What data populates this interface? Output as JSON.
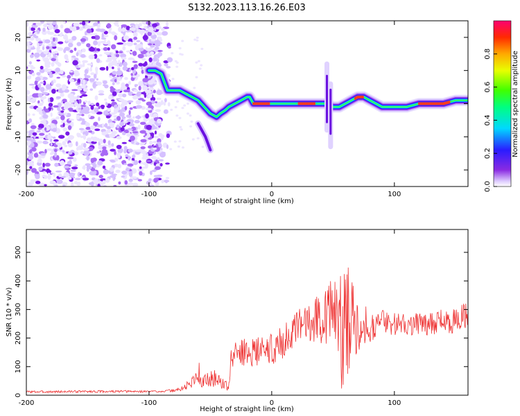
{
  "title": "S132.2023.113.16.26.E03",
  "chart_data": [
    {
      "type": "heatmap",
      "xlabel": "Height of straight line (km)",
      "ylabel": "Frequency (Hz)",
      "xlim": [
        -200,
        160
      ],
      "ylim": [
        -25,
        25
      ],
      "xticks": [
        -200,
        -100,
        0,
        100
      ],
      "yticks": [
        -20,
        -10,
        0,
        10,
        20
      ],
      "colorbar": {
        "label": "Normalized spectral amplitude",
        "range": [
          0.0,
          1.0
        ],
        "ticks": [
          "0.0",
          "0.2",
          "0.4",
          "0.6",
          "0.8"
        ]
      },
      "noise_region_x": [
        -200,
        -83
      ],
      "ridge": {
        "x": [
          -100,
          -95,
          -90,
          -85,
          -80,
          -75,
          -70,
          -65,
          -60,
          -55,
          -50,
          -45,
          -42,
          -38,
          -35,
          -30,
          -25,
          -20,
          -18,
          -15,
          -10,
          -5,
          0,
          10,
          20,
          30,
          40,
          45,
          50,
          55,
          60,
          65,
          70,
          75,
          80,
          85,
          90,
          95,
          100,
          110,
          120,
          130,
          140,
          150,
          160
        ],
        "y": [
          10,
          10,
          9,
          4,
          4,
          4,
          3,
          2,
          1,
          -1,
          -3,
          -4,
          -3,
          -2,
          -1,
          0,
          1,
          2,
          2,
          0,
          0,
          0,
          0,
          0,
          0,
          0,
          0,
          0,
          -1,
          -1,
          0,
          1,
          2,
          2,
          1,
          0,
          -1,
          -1,
          -1,
          -1,
          0,
          0,
          0,
          1,
          1
        ]
      },
      "peak_segments": [
        [
          -15,
          -2
        ],
        [
          22,
          35
        ],
        [
          68,
          75
        ],
        [
          120,
          145
        ]
      ],
      "spikes": [
        {
          "x": 45,
          "y_range": [
            -8,
            12
          ]
        },
        {
          "x": 48,
          "y_range": [
            -13,
            6
          ]
        }
      ],
      "branch": {
        "x": [
          -60,
          -57,
          -54,
          -52,
          -50
        ],
        "y": [
          -6,
          -8,
          -10,
          -12,
          -14
        ]
      }
    },
    {
      "type": "line",
      "color": "#ee3333",
      "xlabel": "Height of straight line (km)",
      "ylabel": "SNR (10 * v/v)",
      "xlim": [
        -200,
        160
      ],
      "ylim": [
        0,
        580
      ],
      "xticks": [
        -200,
        -100,
        0,
        100
      ],
      "yticks": [
        0,
        100,
        200,
        300,
        400,
        500
      ],
      "series": [
        {
          "name": "SNR",
          "x": [
            -200,
            -180,
            -160,
            -140,
            -120,
            -100,
            -90,
            -80,
            -75,
            -70,
            -65,
            -60,
            -58,
            -55,
            -50,
            -45,
            -40,
            -35,
            -33,
            -30,
            -25,
            -20,
            -10,
            0,
            10,
            20,
            30,
            40,
            45,
            50,
            55,
            58,
            60,
            62,
            65,
            70,
            75,
            80,
            90,
            100,
            110,
            120,
            130,
            140,
            150,
            160
          ],
          "y": [
            12,
            12,
            13,
            13,
            13,
            13,
            14,
            16,
            20,
            30,
            45,
            80,
            60,
            50,
            55,
            60,
            40,
            30,
            120,
            150,
            150,
            150,
            155,
            160,
            190,
            220,
            270,
            270,
            290,
            300,
            250,
            200,
            300,
            250,
            280,
            250,
            250,
            240,
            260,
            250,
            250,
            250,
            250,
            260,
            260,
            280
          ],
          "amp": [
            4,
            4,
            4,
            4,
            4,
            4,
            4,
            5,
            8,
            15,
            20,
            50,
            35,
            25,
            30,
            30,
            20,
            15,
            40,
            45,
            45,
            50,
            50,
            55,
            60,
            70,
            80,
            90,
            110,
            120,
            170,
            230,
            250,
            200,
            160,
            100,
            70,
            55,
            45,
            40,
            40,
            40,
            40,
            45,
            45,
            50
          ]
        }
      ]
    }
  ]
}
